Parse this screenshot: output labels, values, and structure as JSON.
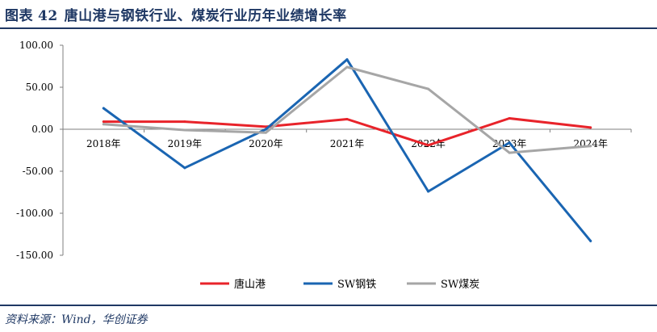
{
  "figure": {
    "label": "图表",
    "number": "42",
    "title": "唐山港与钢铁行业、煤炭行业历年业绩增长率",
    "source": "资料来源：Wind，华创证券"
  },
  "colors": {
    "frame": "#1f3864",
    "axis": "#7f7f7f"
  },
  "chart_data": {
    "type": "line",
    "title": "唐山港与钢铁行业、煤炭行业历年业绩增长率",
    "categories": [
      "2018年",
      "2019年",
      "2020年",
      "2021年",
      "2022年",
      "2023年",
      "2024年"
    ],
    "ylim": [
      -150,
      100
    ],
    "yticks": [
      100,
      50,
      0,
      -50,
      -100,
      -150
    ],
    "ytick_labels": [
      "100.00",
      "50.00",
      "0.00",
      "-50.00",
      "-100.00",
      "-150.00"
    ],
    "xlabel": "",
    "ylabel": "",
    "grid": false,
    "legend": "bottom-center",
    "series": [
      {
        "name": "唐山港",
        "color": "#e8232a",
        "values": [
          9,
          9,
          3,
          12,
          -19,
          13,
          2
        ]
      },
      {
        "name": "SW钢铁",
        "color": "#1a65b2",
        "values": [
          25,
          -46,
          0,
          83,
          -74,
          -16,
          -133
        ]
      },
      {
        "name": "SW煤炭",
        "color": "#a6a6a6",
        "values": [
          6,
          -1,
          -4,
          74,
          48,
          -28,
          -20
        ]
      }
    ]
  }
}
